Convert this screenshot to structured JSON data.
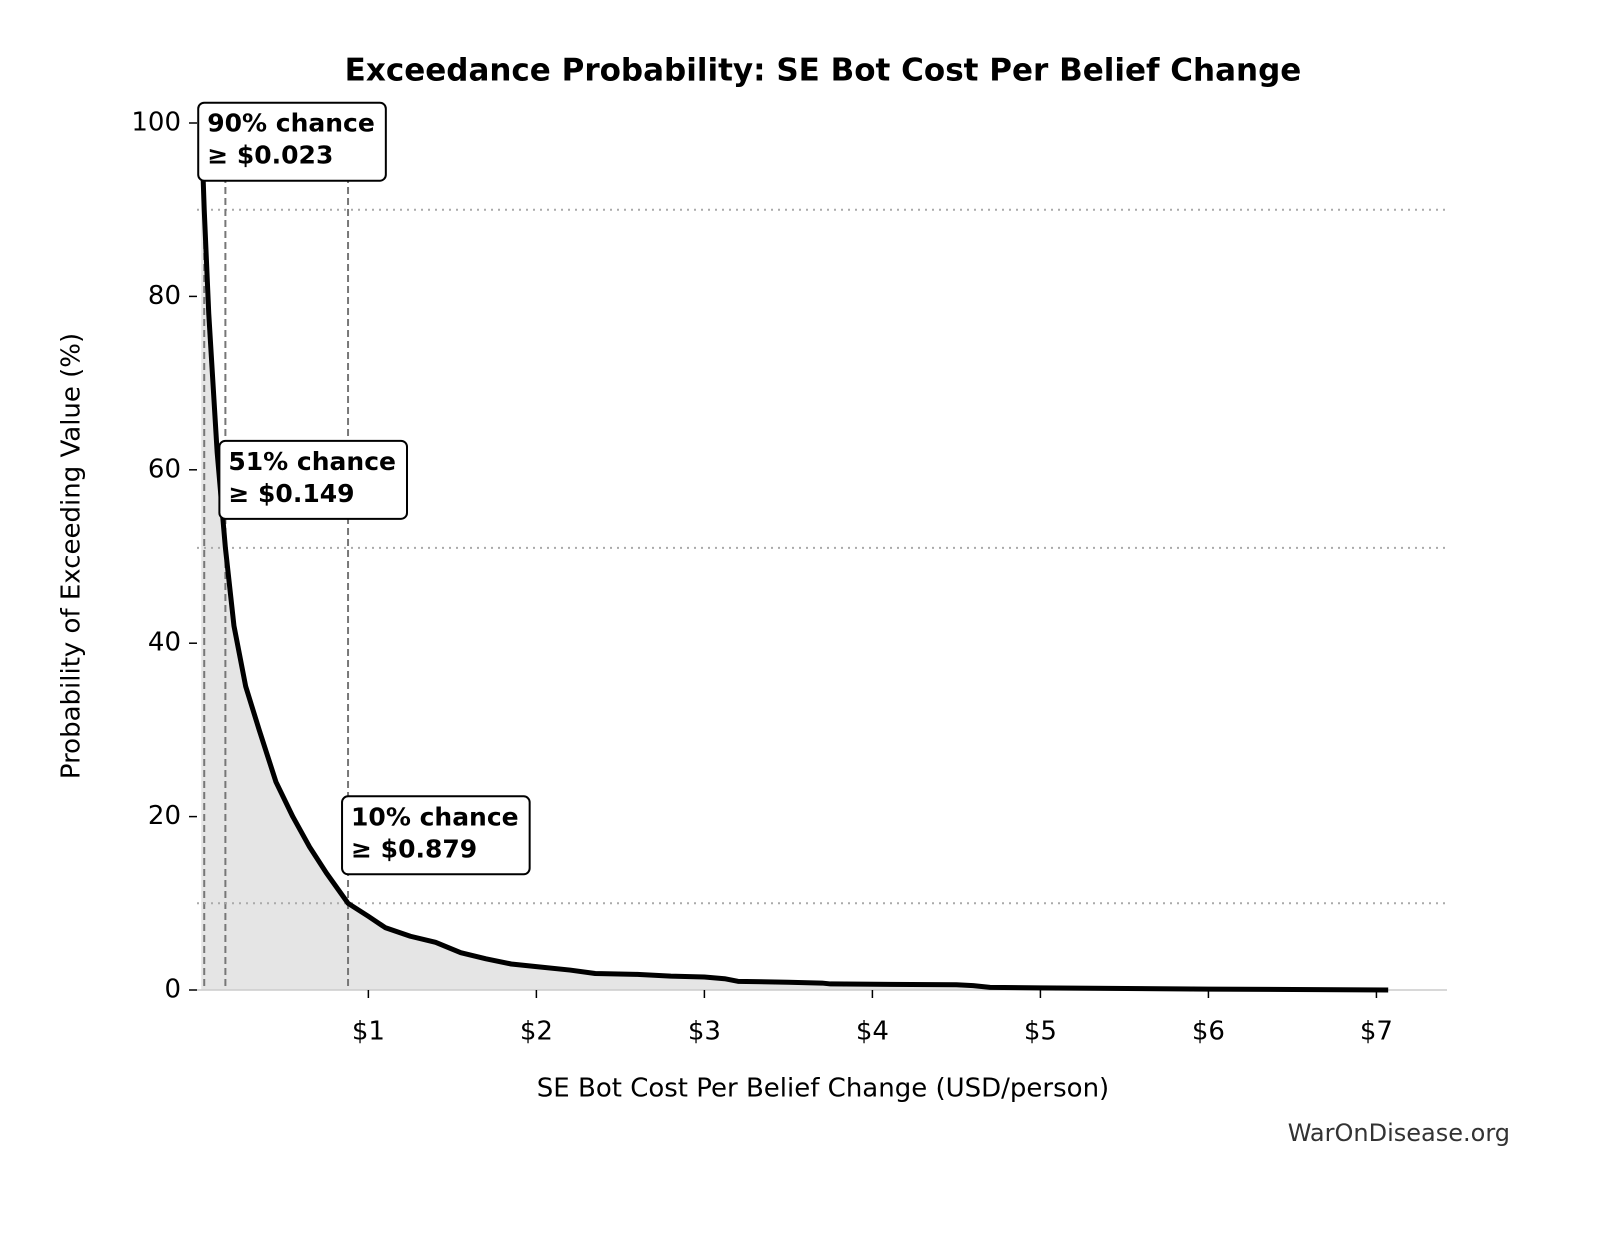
{
  "chart_data": {
    "type": "line",
    "title": "Exceedance Probability: SE Bot Cost Per Belief Change",
    "x_label": "SE Bot Cost Per Belief Change (USD/person)",
    "y_label": "Probability of Exceeding Value (%)",
    "watermark": "WarOnDisease.org",
    "x": [
      0.005,
      0.023,
      0.05,
      0.1,
      0.149,
      0.2,
      0.27,
      0.35,
      0.45,
      0.55,
      0.65,
      0.75,
      0.879,
      1.0,
      1.1,
      1.25,
      1.4,
      1.55,
      1.7,
      1.85,
      2.0,
      2.2,
      2.35,
      2.6,
      2.8,
      3.0,
      3.12,
      3.2,
      3.5,
      3.7,
      3.75,
      4.5,
      4.6,
      4.7,
      5.0,
      6.0,
      7.07
    ],
    "series": [
      {
        "color": "#000000",
        "fill": "#e5e5e5",
        "values": [
          100,
          90,
          78,
          62,
          51,
          42,
          35,
          30,
          24,
          20,
          16.5,
          13.5,
          10,
          8.5,
          7.2,
          6.2,
          5.5,
          4.3,
          3.6,
          3.0,
          2.7,
          2.3,
          1.9,
          1.8,
          1.6,
          1.5,
          1.3,
          1.0,
          0.9,
          0.8,
          0.7,
          0.6,
          0.5,
          0.3,
          0.25,
          0.1,
          0.0
        ]
      }
    ],
    "xlim": [
      -0.02,
      7.42
    ],
    "ylim": [
      0,
      100
    ],
    "xticks": [
      {
        "value": 1,
        "label": "$1"
      },
      {
        "value": 2,
        "label": "$2"
      },
      {
        "value": 3,
        "label": "$3"
      },
      {
        "value": 4,
        "label": "$4"
      },
      {
        "value": 5,
        "label": "$5"
      },
      {
        "value": 6,
        "label": "$6"
      },
      {
        "value": 7,
        "label": "$7"
      }
    ],
    "yticks": [
      0,
      20,
      40,
      60,
      80,
      100
    ],
    "annotations": [
      {
        "x": 0.023,
        "y": 90,
        "lines": [
          "90% chance",
          "≥ $0.023"
        ]
      },
      {
        "x": 0.149,
        "y": 51,
        "lines": [
          "51% chance",
          "≥ $0.149"
        ]
      },
      {
        "x": 0.879,
        "y": 10,
        "lines": [
          "10% chance",
          "≥ $0.879"
        ]
      }
    ]
  }
}
